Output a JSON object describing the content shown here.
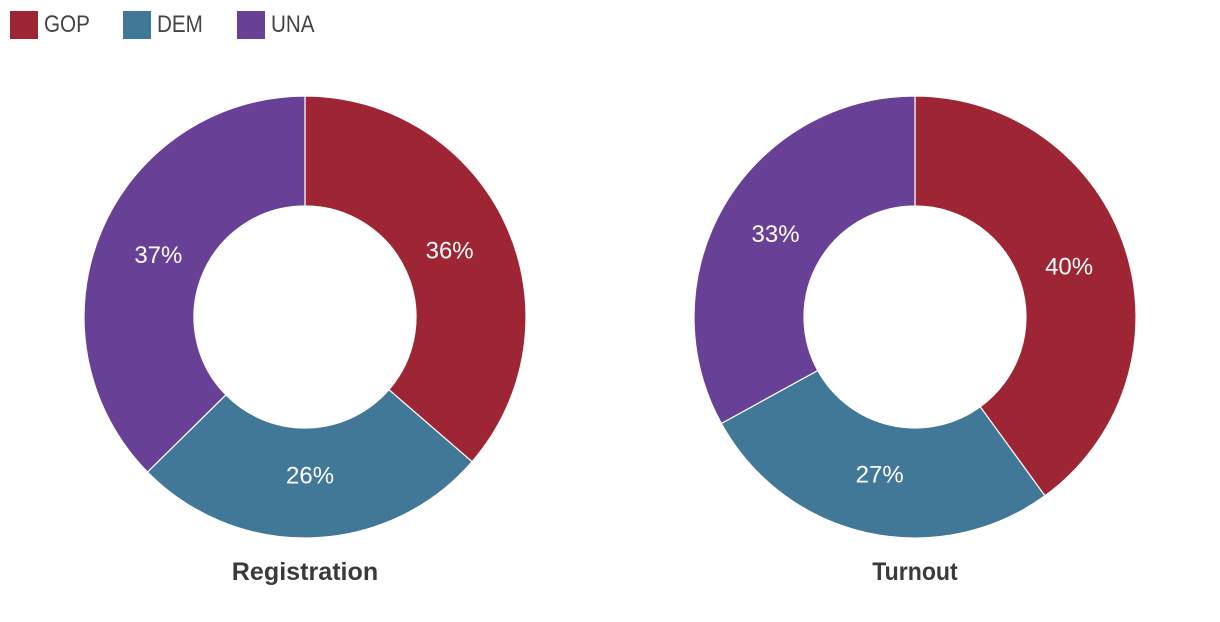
{
  "legend": [
    {
      "name": "GOP",
      "color": "#9e2634"
    },
    {
      "name": "DEM",
      "color": "#427897"
    },
    {
      "name": "UNA",
      "color": "#684196"
    }
  ],
  "chart_data": [
    {
      "type": "pie",
      "title": "Registration",
      "categories": [
        "GOP",
        "DEM",
        "UNA"
      ],
      "values": [
        36,
        26,
        37
      ],
      "labels": [
        "36%",
        "26%",
        "37%"
      ],
      "colors": [
        "#9e2634",
        "#427897",
        "#684196"
      ],
      "donut": true,
      "legend_position": "top-left"
    },
    {
      "type": "pie",
      "title": "Turnout",
      "categories": [
        "GOP",
        "DEM",
        "UNA"
      ],
      "values": [
        40,
        27,
        33
      ],
      "labels": [
        "40%",
        "27%",
        "33%"
      ],
      "colors": [
        "#9e2634",
        "#427897",
        "#684196"
      ],
      "donut": true,
      "legend_position": "top-left"
    }
  ]
}
